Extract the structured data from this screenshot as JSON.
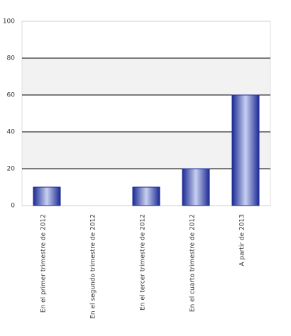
{
  "chart_data": {
    "type": "bar",
    "categories": [
      "En el primer trimestre de 2012",
      "En el segundo trimestre de 2012",
      "En el tercer trimestre de 2012",
      "En el cuarto trimestre de 2012",
      "A partir de 2013"
    ],
    "values": [
      10,
      0,
      10,
      20,
      60
    ],
    "color": "#1c2a94",
    "ylim": [
      0,
      100
    ],
    "yticks": [
      0,
      20,
      40,
      60,
      80,
      100
    ],
    "grid": true
  }
}
